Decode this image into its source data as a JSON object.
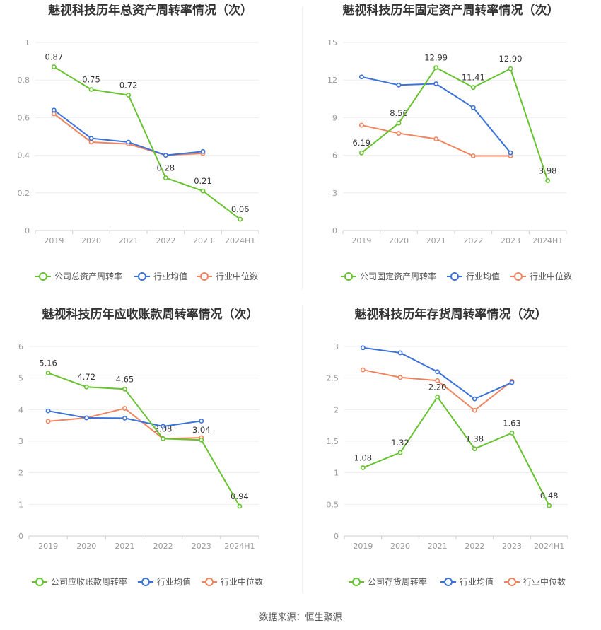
{
  "source": "数据来源：恒生聚源",
  "legend_common": {
    "industry_avg": "行业均值",
    "industry_median": "行业中位数"
  },
  "colors": {
    "company": "#66c22e",
    "industry_avg": "#3a72d9",
    "industry_median": "#f0845e",
    "grid": "#eeeeee",
    "axis": "#cccccc"
  },
  "chart_data": [
    {
      "type": "line",
      "title": "魅视科技历年总资产周转率情况（次）",
      "categories": [
        "2019",
        "2020",
        "2021",
        "2022",
        "2023",
        "2024H1"
      ],
      "ylim": [
        0,
        1
      ],
      "yticks": [
        "0",
        "0.2",
        "0.4",
        "0.6",
        "0.8",
        "1"
      ],
      "series": [
        {
          "name": "公司总资产周转率",
          "values": [
            0.87,
            0.75,
            0.72,
            0.28,
            0.21,
            0.06
          ],
          "labels": [
            "0.87",
            "0.75",
            "0.72",
            "0.28",
            "0.21",
            "0.06"
          ]
        },
        {
          "name": "行业均值",
          "values": [
            0.64,
            0.49,
            0.47,
            0.4,
            0.42,
            null
          ]
        },
        {
          "name": "行业中位数",
          "values": [
            0.62,
            0.47,
            0.46,
            0.4,
            0.41,
            null
          ]
        }
      ]
    },
    {
      "type": "line",
      "title": "魅视科技历年固定资产周转率情况（次）",
      "categories": [
        "2019",
        "2020",
        "2021",
        "2022",
        "2023",
        "2024H1"
      ],
      "ylim": [
        0,
        15
      ],
      "yticks": [
        "0",
        "3",
        "6",
        "9",
        "12",
        "15"
      ],
      "series": [
        {
          "name": "公司固定资产周转率",
          "values": [
            6.19,
            8.56,
            12.99,
            11.41,
            12.9,
            3.98
          ],
          "labels": [
            "6.19",
            "8.56",
            "12.99",
            "11.41",
            "12.90",
            "3.98"
          ]
        },
        {
          "name": "行业均值",
          "values": [
            12.25,
            11.6,
            11.7,
            9.8,
            6.2,
            null
          ]
        },
        {
          "name": "行业中位数",
          "values": [
            8.4,
            7.75,
            7.3,
            5.95,
            5.95,
            null
          ]
        }
      ]
    },
    {
      "type": "line",
      "title": "魅视科技历年应收账款周转率情况（次）",
      "categories": [
        "2019",
        "2020",
        "2021",
        "2022",
        "2023",
        "2024H1"
      ],
      "ylim": [
        0,
        6
      ],
      "yticks": [
        "0",
        "1",
        "2",
        "3",
        "4",
        "5",
        "6"
      ],
      "series": [
        {
          "name": "公司应收账款周转率",
          "values": [
            5.16,
            4.72,
            4.65,
            3.08,
            3.04,
            0.94
          ],
          "labels": [
            "5.16",
            "4.72",
            "4.65",
            "3.08",
            "3.04",
            "0.94"
          ]
        },
        {
          "name": "行业均值",
          "values": [
            3.96,
            3.74,
            3.73,
            3.47,
            3.64,
            null
          ]
        },
        {
          "name": "行业中位数",
          "values": [
            3.63,
            3.74,
            4.04,
            3.08,
            3.11,
            null
          ]
        }
      ]
    },
    {
      "type": "line",
      "title": "魅视科技历年存货周转率情况（次）",
      "categories": [
        "2019",
        "2020",
        "2021",
        "2022",
        "2023",
        "2024H1"
      ],
      "ylim": [
        0,
        3
      ],
      "yticks": [
        "0",
        "0.5",
        "1",
        "1.5",
        "2",
        "2.5",
        "3"
      ],
      "series": [
        {
          "name": "公司存货周转率",
          "values": [
            1.08,
            1.32,
            2.2,
            1.38,
            1.63,
            0.48
          ],
          "labels": [
            "1.08",
            "1.32",
            "2.20",
            "1.38",
            "1.63",
            "0.48"
          ]
        },
        {
          "name": "行业均值",
          "values": [
            2.98,
            2.9,
            2.6,
            2.17,
            2.43,
            null
          ]
        },
        {
          "name": "行业中位数",
          "values": [
            2.63,
            2.51,
            2.46,
            1.99,
            2.45,
            null
          ]
        }
      ]
    }
  ]
}
